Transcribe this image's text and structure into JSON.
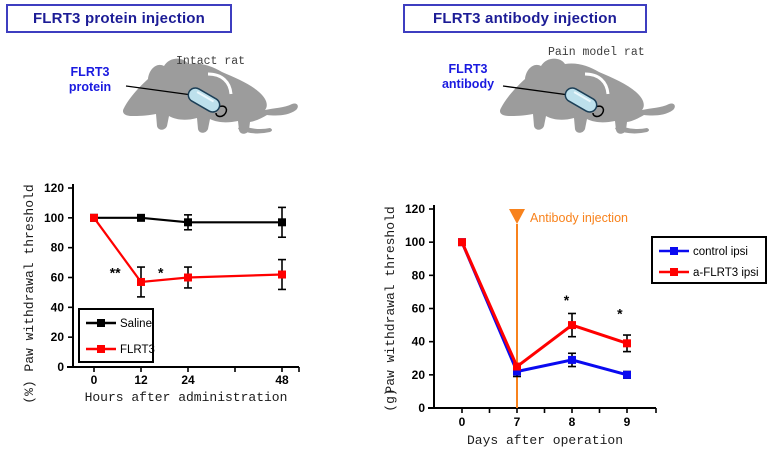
{
  "panels": {
    "left": {
      "title": "FLRT3 protein injection",
      "rat_caption": "Intact rat",
      "injection_label_line1": "FLRT3",
      "injection_label_line2": "protein"
    },
    "right": {
      "title": "FLRT3 antibody injection",
      "rat_caption": "Pain model rat",
      "injection_label_line1": "FLRT3",
      "injection_label_line2": "antibody"
    }
  },
  "colors": {
    "title_text": "#1C1C96",
    "title_border": "#3E3EC0",
    "injection_label_blue": "#1A1AE0",
    "rat_gray": "#9C9C9C",
    "capsule_fill": "#BDE0EC",
    "saline_black": "#000000",
    "flrt3_red": "#FF0000",
    "control_blue": "#0A0AF0",
    "event_orange": "#F8821C"
  },
  "chart_data": [
    {
      "id": "chart-protein",
      "type": "line",
      "title": "",
      "xlabel": "Hours after administration",
      "ylabel": "Paw withdrawal threshold",
      "ylabel_unit": "(%)",
      "ylim": [
        0,
        120
      ],
      "y_ticks": [
        0,
        20,
        40,
        60,
        80,
        100,
        120
      ],
      "x_tick_labels": [
        "0",
        "12",
        "24",
        "",
        "48"
      ],
      "x_values": [
        0,
        12,
        24,
        48
      ],
      "x_index": [
        0,
        1,
        2,
        4
      ],
      "grid": false,
      "legend_position": "bottom-left",
      "series": [
        {
          "name": "Saline",
          "color": "#000000",
          "values": [
            100,
            100,
            97,
            97
          ],
          "errors": [
            0,
            0,
            5,
            10
          ]
        },
        {
          "name": "FLRT3",
          "color": "#FF0000",
          "values": [
            100,
            57,
            60,
            62
          ],
          "errors": [
            0,
            10,
            7,
            10
          ]
        }
      ],
      "annotations": [
        {
          "text": "**",
          "xi": 0.45,
          "v": 60
        },
        {
          "text": "*",
          "xi": 1.42,
          "v": 60
        }
      ]
    },
    {
      "id": "chart-antibody",
      "type": "line",
      "title": "",
      "xlabel": "Days after operation",
      "ylabel": "Paw withdrawal threshold",
      "ylabel_unit": "(g)",
      "ylim": [
        0,
        120
      ],
      "y_ticks": [
        0,
        20,
        40,
        60,
        80,
        100,
        120
      ],
      "x_tick_labels": [
        "0",
        "7",
        "8",
        "9"
      ],
      "x_values": [
        0,
        7,
        8,
        9
      ],
      "x_index": [
        0,
        1,
        2,
        3
      ],
      "grid": false,
      "legend_position": "top-right",
      "series": [
        {
          "name": "control ipsi",
          "color": "#0A0AF0",
          "values": [
            100,
            22,
            29,
            20
          ],
          "errors": [
            0,
            3,
            4,
            2
          ]
        },
        {
          "name": "a-FLRT3 ipsi",
          "color": "#FF0000",
          "values": [
            100,
            25,
            50,
            39
          ],
          "errors": [
            0,
            0,
            7,
            5
          ]
        }
      ],
      "event": {
        "label": "Antibody injection",
        "at_x": 7,
        "at_index": 1,
        "color": "#F8821C"
      },
      "annotations": [
        {
          "text": "*",
          "xi": 1.9,
          "v": 62
        },
        {
          "text": "*",
          "xi": 2.87,
          "v": 54
        }
      ]
    }
  ]
}
